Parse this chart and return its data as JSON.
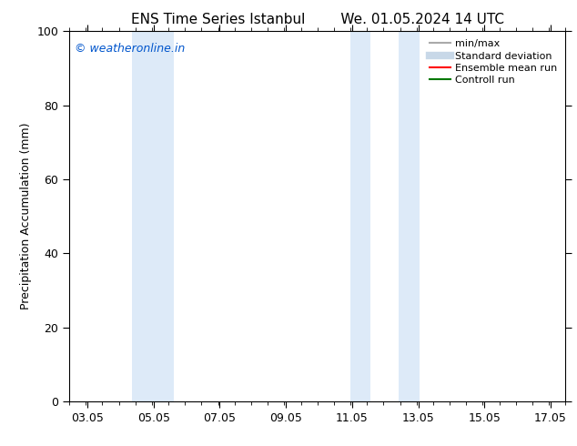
{
  "title_left": "ENS Time Series Istanbul",
  "title_right": "We. 01.05.2024 14 UTC",
  "ylabel": "Precipitation Accumulation (mm)",
  "ylim": [
    0,
    100
  ],
  "yticks": [
    0,
    20,
    40,
    60,
    80,
    100
  ],
  "xlim_min": 2.5,
  "xlim_max": 17.5,
  "xticks": [
    3.05,
    5.05,
    7.05,
    9.05,
    11.05,
    13.05,
    15.05,
    17.05
  ],
  "xticklabels": [
    "03.05",
    "05.05",
    "07.05",
    "09.05",
    "11.05",
    "13.05",
    "15.05",
    "17.05"
  ],
  "shaded_regions": [
    {
      "x_start": 4.4,
      "x_end": 5.65,
      "color": "#ddeaf8"
    },
    {
      "x_start": 11.0,
      "x_end": 11.6,
      "color": "#ddeaf8"
    },
    {
      "x_start": 12.45,
      "x_end": 13.1,
      "color": "#ddeaf8"
    }
  ],
  "watermark_text": "© weatheronline.in",
  "watermark_color": "#0055cc",
  "watermark_fontsize": 9,
  "legend_items": [
    {
      "label": "min/max",
      "color": "#aaaaaa",
      "lw": 1.5,
      "style": "solid"
    },
    {
      "label": "Standard deviation",
      "color": "#c8d8e8",
      "lw": 6,
      "style": "solid"
    },
    {
      "label": "Ensemble mean run",
      "color": "#ff0000",
      "lw": 1.5,
      "style": "solid"
    },
    {
      "label": "Controll run",
      "color": "#007700",
      "lw": 1.5,
      "style": "solid"
    }
  ],
  "background_color": "#ffffff",
  "axes_background": "#ffffff",
  "title_fontsize": 11,
  "tick_fontsize": 9,
  "ylabel_fontsize": 9,
  "legend_fontsize": 8
}
